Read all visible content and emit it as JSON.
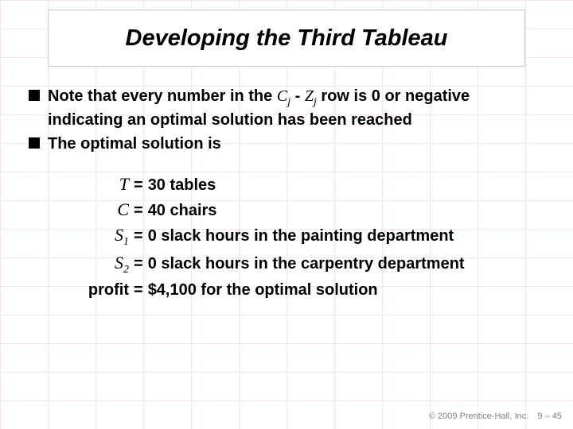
{
  "title": "Developing the Third Tableau",
  "bullets": {
    "b1_pre": "Note that every number in the ",
    "b1_var1": "C",
    "b1_sub1": "j",
    "b1_mid": " - ",
    "b1_var2": "Z",
    "b1_sub2": "j",
    "b1_post": " row is 0 or negative indicating an optimal solution has been reached",
    "b2": "The optimal solution is"
  },
  "solution": {
    "rows": [
      {
        "label_var": "T",
        "label_sub": "",
        "label_plain": "",
        "value": "30 tables"
      },
      {
        "label_var": "C",
        "label_sub": "",
        "label_plain": "",
        "value": "40 chairs"
      },
      {
        "label_var": "S",
        "label_sub": "1",
        "label_plain": "",
        "value": "0 slack hours in the painting department"
      },
      {
        "label_var": "S",
        "label_sub": "2",
        "label_plain": "",
        "value": "0 slack hours in the carpentry department"
      },
      {
        "label_var": "",
        "label_sub": "",
        "label_plain": "profit",
        "value": "$4,100 for the optimal solution"
      }
    ]
  },
  "footer": {
    "copyright": "© 2009 Prentice-Hall, Inc.",
    "page": "9 – 45"
  },
  "colors": {
    "grid": "#f5e6e6",
    "text": "#000000",
    "footer": "#808080",
    "title_border": "#c8c8d8",
    "background": "#ffffff"
  }
}
